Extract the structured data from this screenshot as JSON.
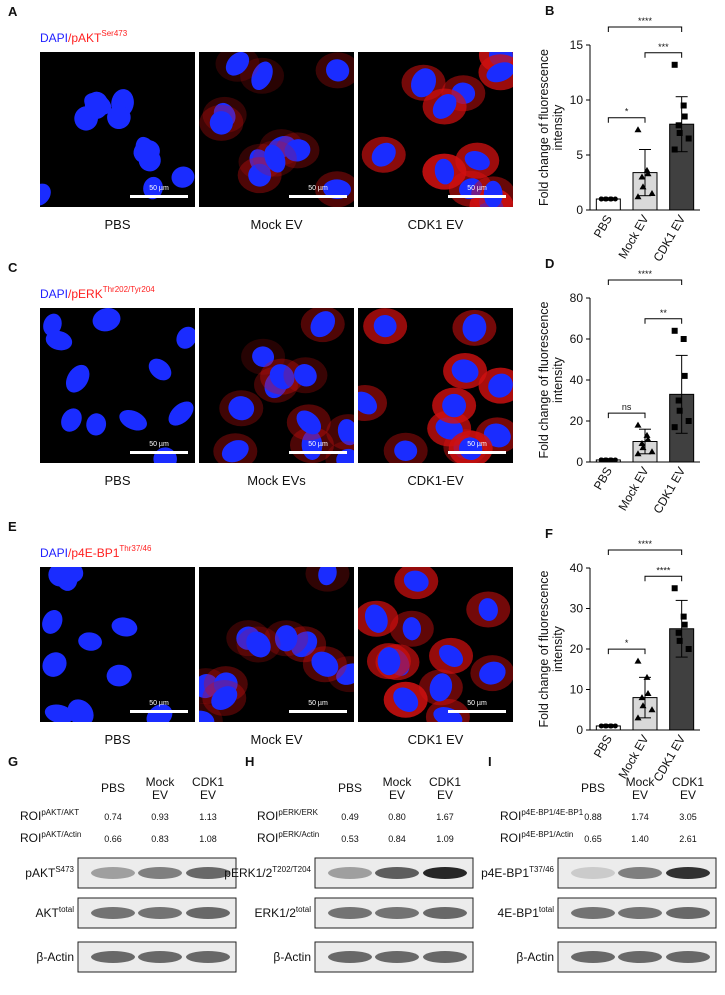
{
  "images": [
    {
      "letter": "A",
      "stain": "DAPI",
      "marker": "/pAKT",
      "marker_sup": "Ser473",
      "conditions": [
        "PBS",
        "Mock EV",
        "CDK1 EV"
      ],
      "scale_bar": "50 µm"
    },
    {
      "letter": "C",
      "stain": "DAPI",
      "marker": "/pERK",
      "marker_sup": "Thr202/Tyr204",
      "conditions": [
        "PBS",
        "Mock EVs",
        "CDK1-EV"
      ],
      "scale_bar": "50 µm"
    },
    {
      "letter": "E",
      "stain": "DAPI",
      "marker": "/p4E-BP1",
      "marker_sup": "Thr37/46",
      "conditions": [
        "PBS",
        "Mock EV",
        "CDK1 EV"
      ],
      "scale_bar": "50 µm"
    }
  ],
  "chart_data": [
    {
      "letter": "B",
      "type": "bar",
      "ylabel": [
        "Fold change of fluorescence",
        "intensity"
      ],
      "categories": [
        "PBS",
        "Mock EV",
        "CDK1 EV"
      ],
      "values": [
        1,
        3.4,
        7.8
      ],
      "errors": [
        0.1,
        2.1,
        2.5
      ],
      "points": [
        [
          1,
          1,
          1,
          1,
          1,
          1,
          1
        ],
        [
          7.3,
          3.6,
          3.3,
          3.0,
          2.1,
          1.5,
          1.2
        ],
        [
          13.2,
          9.5,
          8.5,
          7.7,
          7.0,
          6.5,
          5.5
        ]
      ],
      "colors": [
        "#ffffff",
        "#d9d9d9",
        "#404040"
      ],
      "ylim": [
        0,
        15
      ],
      "yticks": [
        0,
        5,
        10,
        15
      ],
      "annotations": [
        {
          "between": [
            "PBS",
            "CDK1 EV"
          ],
          "label": "****"
        },
        {
          "between": [
            "PBS",
            "Mock EV"
          ],
          "label": "*"
        },
        {
          "between": [
            "Mock EV",
            "CDK1 EV"
          ],
          "label": "***"
        }
      ]
    },
    {
      "letter": "D",
      "type": "bar",
      "ylabel": [
        "Fold change of fluorescence",
        "intensity"
      ],
      "categories": [
        "PBS",
        "Mock EV",
        "CDK1 EV"
      ],
      "values": [
        1,
        10,
        33
      ],
      "errors": [
        0.2,
        6,
        19
      ],
      "points": [
        [
          1,
          1,
          1,
          1,
          1,
          1,
          1
        ],
        [
          18,
          13,
          11,
          9,
          7,
          5,
          4
        ],
        [
          64,
          60,
          42,
          30,
          25,
          20,
          17
        ]
      ],
      "colors": [
        "#ffffff",
        "#d9d9d9",
        "#404040"
      ],
      "ylim": [
        0,
        80
      ],
      "yticks": [
        0,
        20,
        40,
        60,
        80
      ],
      "annotations": [
        {
          "between": [
            "PBS",
            "CDK1 EV"
          ],
          "label": "****"
        },
        {
          "between": [
            "PBS",
            "Mock EV"
          ],
          "label": "ns"
        },
        {
          "between": [
            "Mock EV",
            "CDK1 EV"
          ],
          "label": "**"
        }
      ]
    },
    {
      "letter": "F",
      "type": "bar",
      "ylabel": [
        "Fold change of fluorescence",
        "intensity"
      ],
      "categories": [
        "PBS",
        "Mock EV",
        "CDK1 EV"
      ],
      "values": [
        1,
        8,
        25
      ],
      "errors": [
        0.2,
        5,
        7
      ],
      "points": [
        [
          1,
          1,
          1,
          1,
          1,
          1
        ],
        [
          17,
          13,
          9,
          8,
          6,
          5,
          3
        ],
        [
          35,
          28,
          26,
          24,
          22,
          20
        ]
      ],
      "colors": [
        "#ffffff",
        "#d9d9d9",
        "#404040"
      ],
      "ylim": [
        0,
        40
      ],
      "yticks": [
        0,
        10,
        20,
        30,
        40
      ],
      "annotations": [
        {
          "between": [
            "PBS",
            "CDK1 EV"
          ],
          "label": "****"
        },
        {
          "between": [
            "PBS",
            "Mock EV"
          ],
          "label": "*"
        },
        {
          "between": [
            "Mock EV",
            "CDK1 EV"
          ],
          "label": "****"
        }
      ]
    }
  ],
  "blots": [
    {
      "letter": "G",
      "columns": [
        [
          "PBS"
        ],
        [
          "Mock",
          "EV"
        ],
        [
          "CDK1",
          "EV"
        ]
      ],
      "roi": [
        {
          "label": "ROI",
          "sup": "pAKT/AKT",
          "values": [
            "0.74",
            "0.93",
            "1.13"
          ]
        },
        {
          "label": "ROI",
          "sup": "pAKT/Actin",
          "values": [
            "0.66",
            "0.83",
            "1.08"
          ]
        }
      ],
      "bands": [
        {
          "name": "pAKT",
          "sup": "S473"
        },
        {
          "name": "AKT",
          "sup": "total"
        },
        {
          "name": "β-Actin"
        }
      ]
    },
    {
      "letter": "H",
      "columns": [
        [
          "PBS"
        ],
        [
          "Mock",
          "EV"
        ],
        [
          "CDK1",
          "EV"
        ]
      ],
      "roi": [
        {
          "label": "ROI",
          "sup": "pERK/ERK",
          "values": [
            "0.49",
            "0.80",
            "1.67"
          ]
        },
        {
          "label": "ROI",
          "sup": "pERK/Actin",
          "values": [
            "0.53",
            "0.84",
            "1.09"
          ]
        }
      ],
      "bands": [
        {
          "name": "pERK1/2",
          "sup": "T202/T204"
        },
        {
          "name": "ERK1/2",
          "sup": "total"
        },
        {
          "name": "β-Actin"
        }
      ]
    },
    {
      "letter": "I",
      "columns": [
        [
          "PBS"
        ],
        [
          "Mock",
          "EV"
        ],
        [
          "CDK1",
          "EV"
        ]
      ],
      "roi": [
        {
          "label": "ROI",
          "sup": "p4E-BP1/4E-BP1",
          "values": [
            "0.88",
            "1.74",
            "3.05"
          ]
        },
        {
          "label": "ROI",
          "sup": "p4E-BP1/Actin",
          "values": [
            "0.65",
            "1.40",
            "2.61"
          ]
        }
      ],
      "bands": [
        {
          "name": "p4E-BP1",
          "sup": "T37/46"
        },
        {
          "name": "4E-BP1",
          "sup": "total"
        },
        {
          "name": "β-Actin"
        }
      ]
    }
  ]
}
